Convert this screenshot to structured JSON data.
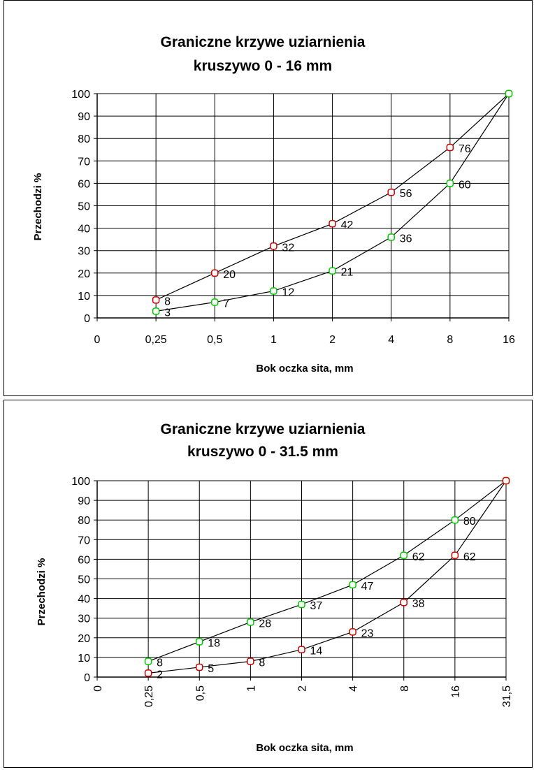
{
  "chart_data": [
    {
      "type": "line",
      "title_line1": "Graniczne krzywe uziarnienia",
      "title_line2": "kruszywo 0 - 16 mm",
      "xlabel": "Bok oczka sita, mm",
      "ylabel": "Przechodzi %",
      "categories": [
        "0",
        "0,25",
        "0,5",
        "1",
        "2",
        "4",
        "8",
        "16"
      ],
      "ylim": [
        0,
        100
      ],
      "yticks": [
        "0",
        "10",
        "20",
        "30",
        "40",
        "50",
        "60",
        "70",
        "80",
        "90",
        "100"
      ],
      "grid": true,
      "rotated_x_labels": false,
      "series": [
        {
          "color": "#cc0000",
          "points": [
            [
              1,
              8
            ],
            [
              2,
              20
            ],
            [
              3,
              32
            ],
            [
              4,
              42
            ],
            [
              5,
              56
            ],
            [
              6,
              76
            ],
            [
              7,
              100
            ]
          ],
          "labels": [
            "8",
            "20",
            "32",
            "42",
            "56",
            "76",
            ""
          ]
        },
        {
          "color": "#00cc00",
          "points": [
            [
              1,
              3
            ],
            [
              2,
              7
            ],
            [
              3,
              12
            ],
            [
              4,
              21
            ],
            [
              5,
              36
            ],
            [
              6,
              60
            ],
            [
              7,
              100
            ]
          ],
          "labels": [
            "3",
            "7",
            "12",
            "21",
            "36",
            "60",
            ""
          ]
        }
      ]
    },
    {
      "type": "line",
      "title_line1": "Graniczne krzywe uziarnienia",
      "title_line2": "kruszywo 0 - 31.5 mm",
      "xlabel": "Bok oczka sita, mm",
      "ylabel": "Przechodzi %",
      "categories": [
        "0",
        "0,25",
        "0,5",
        "1",
        "2",
        "4",
        "8",
        "16",
        "31,5"
      ],
      "ylim": [
        0,
        100
      ],
      "yticks": [
        "0",
        "10",
        "20",
        "30",
        "40",
        "50",
        "60",
        "70",
        "80",
        "90",
        "100"
      ],
      "grid": true,
      "rotated_x_labels": true,
      "series": [
        {
          "color": "#00cc00",
          "points": [
            [
              1,
              8
            ],
            [
              2,
              18
            ],
            [
              3,
              28
            ],
            [
              4,
              37
            ],
            [
              5,
              47
            ],
            [
              6,
              62
            ],
            [
              7,
              80
            ],
            [
              8,
              100
            ]
          ],
          "labels": [
            "8",
            "18",
            "28",
            "37",
            "47",
            "62",
            "80",
            ""
          ]
        },
        {
          "color": "#cc0000",
          "points": [
            [
              1,
              2
            ],
            [
              2,
              5
            ],
            [
              3,
              8
            ],
            [
              4,
              14
            ],
            [
              5,
              23
            ],
            [
              6,
              38
            ],
            [
              7,
              62
            ],
            [
              8,
              100
            ]
          ],
          "labels": [
            "2",
            "5",
            "8",
            "14",
            "23",
            "38",
            "62",
            ""
          ]
        }
      ]
    }
  ]
}
